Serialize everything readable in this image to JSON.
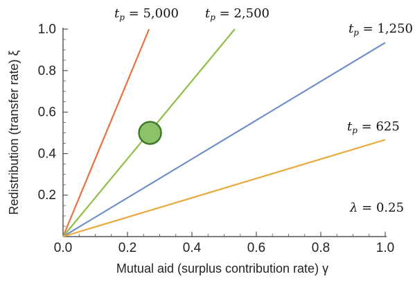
{
  "chart_data": {
    "type": "line",
    "xlabel": "Mutual aid (surplus contribution rate) γ",
    "ylabel": "Redistribution (transfer rate) ξ",
    "xlim": [
      0,
      1
    ],
    "ylim": [
      0,
      1
    ],
    "xticks": [
      "0.0",
      "0.2",
      "0.4",
      "0.6",
      "0.8",
      "1.0"
    ],
    "yticks": [
      "0.2",
      "0.4",
      "0.6",
      "0.8",
      "1.0"
    ],
    "grid": false,
    "series": [
      {
        "name": "t_p = 5,000",
        "label_value": "5,000",
        "color": "#E8703F",
        "x": [
          0,
          0.267
        ],
        "y": [
          0,
          1.0
        ]
      },
      {
        "name": "t_p = 2,500",
        "label_value": "2,500",
        "color": "#8FBE45",
        "x": [
          0,
          0.533
        ],
        "y": [
          0,
          1.0
        ]
      },
      {
        "name": "t_p = 1,250",
        "label_value": "1,250",
        "color": "#6F8FC8",
        "x": [
          0,
          1.0
        ],
        "y": [
          0,
          0.935
        ]
      },
      {
        "name": "t_p = 625",
        "label_value": "625",
        "color": "#E8A93A",
        "x": [
          0,
          1.0
        ],
        "y": [
          0,
          0.467
        ]
      }
    ],
    "highlight_point": {
      "x": 0.27,
      "y": 0.5,
      "fill": "#8DC26A",
      "stroke": "#3F7A2A"
    },
    "annotation": {
      "lambda_value": "0.25"
    }
  }
}
